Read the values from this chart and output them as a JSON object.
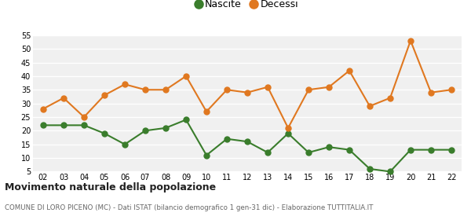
{
  "years": [
    "02",
    "03",
    "04",
    "05",
    "06",
    "07",
    "08",
    "09",
    "10",
    "11",
    "12",
    "13",
    "14",
    "15",
    "16",
    "17",
    "18",
    "19",
    "20",
    "21",
    "22"
  ],
  "nascite": [
    22,
    22,
    22,
    19,
    15,
    20,
    21,
    24,
    11,
    17,
    16,
    12,
    19,
    12,
    14,
    13,
    6,
    5,
    13,
    13,
    13
  ],
  "decessi": [
    28,
    32,
    25,
    33,
    37,
    35,
    35,
    40,
    27,
    35,
    34,
    36,
    21,
    35,
    36,
    42,
    29,
    32,
    53,
    34,
    35
  ],
  "nascite_color": "#3a7d2c",
  "decessi_color": "#e07820",
  "bg_color": "#f0f0f0",
  "plot_bg": "#f0f0f0",
  "grid_color": "#ffffff",
  "fig_bg": "#ffffff",
  "ylim": [
    5,
    55
  ],
  "yticks": [
    5,
    10,
    15,
    20,
    25,
    30,
    35,
    40,
    45,
    50,
    55
  ],
  "title": "Movimento naturale della popolazione",
  "subtitle": "COMUNE DI LORO PICENO (MC) - Dati ISTAT (bilancio demografico 1 gen-31 dic) - Elaborazione TUTTITALIA.IT",
  "legend_nascite": "Nascite",
  "legend_decessi": "Decessi",
  "marker_size": 5,
  "line_width": 1.5
}
